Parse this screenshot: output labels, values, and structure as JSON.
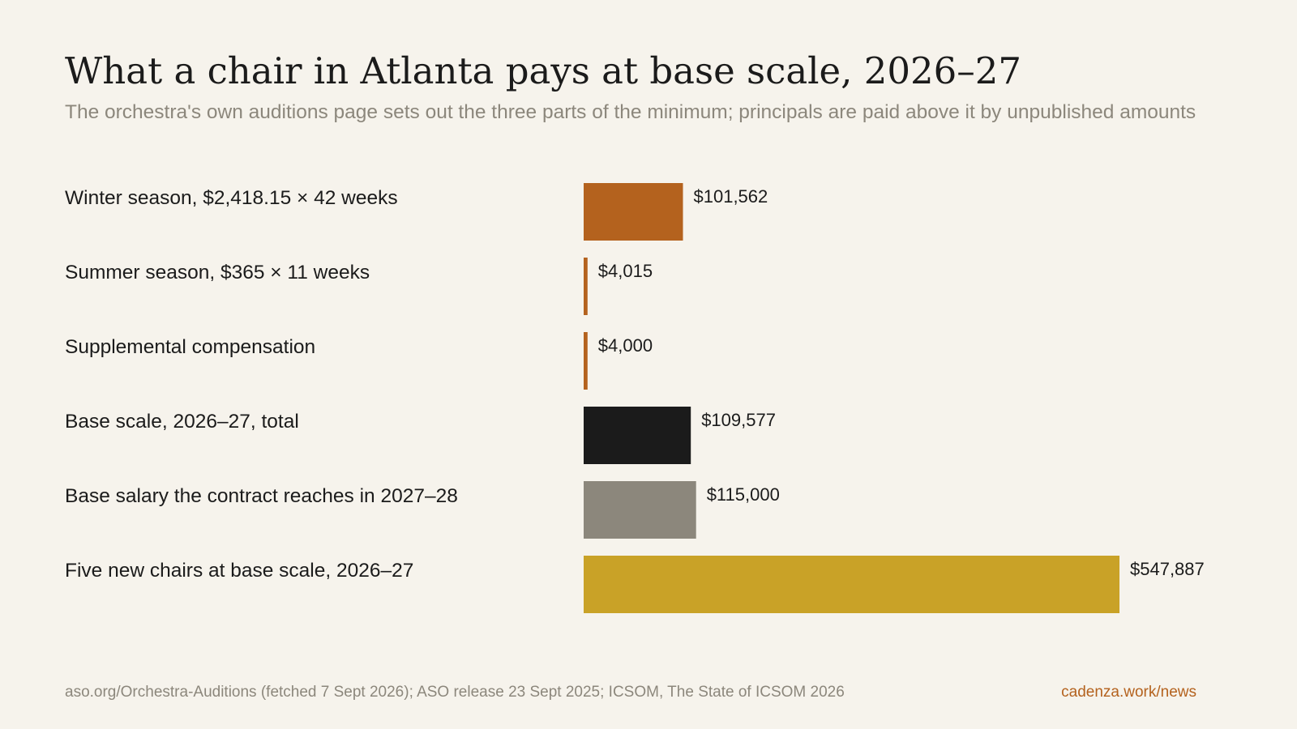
{
  "title": "What a chair in Atlanta pays at base scale, 2026–27",
  "subtitle": "The orchestra's own auditions page sets out the three parts of the minimum; principals are paid above it by unpublished amounts",
  "footer": {
    "source": "aso.org/Orchestra-Auditions (fetched 7 Sept 2026); ASO release 23 Sept 2025; ICSOM, The State of ICSOM 2026",
    "brand": "cadenza.work/news"
  },
  "chart_data": {
    "type": "bar",
    "orientation": "horizontal",
    "categories": [
      "Winter season, $2,418.15 × 42 weeks",
      "Summer season, $365 × 11 weeks",
      "Supplemental compensation",
      "Base scale, 2026–27, total",
      "Base salary the contract reaches in 2027–28",
      "Five new chairs at base scale, 2026–27"
    ],
    "values": [
      101562,
      4015,
      4000,
      109577,
      115000,
      547887
    ],
    "value_labels": [
      "$101,562",
      "$4,015",
      "$4,000",
      "$109,577",
      "$115,000",
      "$547,887"
    ],
    "colors": [
      "#b4621e",
      "#b4621e",
      "#b4621e",
      "#1b1b1b",
      "#8c877c",
      "#c9a227"
    ],
    "xlim": [
      0,
      547887
    ],
    "grid": false,
    "legend": "none",
    "title": "What a chair in Atlanta pays at base scale, 2026–27",
    "xlabel": "",
    "ylabel": ""
  }
}
